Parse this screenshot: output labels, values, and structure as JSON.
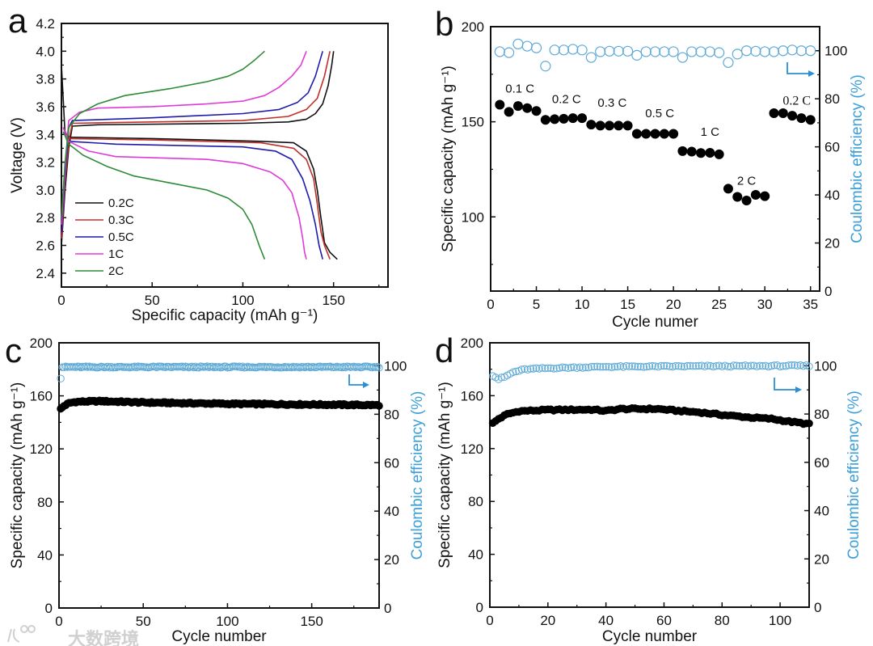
{
  "watermark": "大数跨境",
  "arrow_color": "#2b8fd6",
  "chart_data": [
    {
      "panel": "a",
      "type": "line",
      "xlabel": "Specific capacity (mAh g⁻¹)",
      "ylabel": "Voltage (V)",
      "xlim": [
        0,
        180
      ],
      "ylim": [
        2.3,
        4.2
      ],
      "xticks": [
        "0",
        "50",
        "100",
        "150"
      ],
      "xtick_values": [
        0,
        50,
        100,
        150
      ],
      "yticks": [
        "2.4",
        "2.6",
        "2.8",
        "3.0",
        "3.2",
        "3.4",
        "3.6",
        "3.8",
        "4.0",
        "4.2"
      ],
      "ytick_values": [
        2.4,
        2.6,
        2.8,
        3.0,
        3.2,
        3.4,
        3.6,
        3.8,
        4.0,
        4.2
      ],
      "legend_position": "bottom-left",
      "series": [
        {
          "name": "0.2C",
          "color": "#111111",
          "charge": [
            [
              0,
              2.6
            ],
            [
              2,
              3.0
            ],
            [
              4,
              3.3
            ],
            [
              6,
              3.46
            ],
            [
              20,
              3.47
            ],
            [
              100,
              3.48
            ],
            [
              125,
              3.49
            ],
            [
              135,
              3.51
            ],
            [
              140,
              3.55
            ],
            [
              144,
              3.62
            ],
            [
              147,
              3.75
            ],
            [
              149,
              3.9
            ],
            [
              150,
              4.0
            ]
          ],
          "discharge": [
            [
              0,
              3.9
            ],
            [
              2,
              3.4
            ],
            [
              5,
              3.38
            ],
            [
              50,
              3.37
            ],
            [
              110,
              3.35
            ],
            [
              128,
              3.34
            ],
            [
              135,
              3.28
            ],
            [
              139,
              3.15
            ],
            [
              141,
              3.0
            ],
            [
              143,
              2.8
            ],
            [
              145,
              2.62
            ],
            [
              148,
              2.55
            ],
            [
              152,
              2.5
            ]
          ]
        },
        {
          "name": "0.3C",
          "color": "#c0302a",
          "charge": [
            [
              0,
              2.65
            ],
            [
              2,
              3.05
            ],
            [
              4,
              3.35
            ],
            [
              6,
              3.48
            ],
            [
              50,
              3.49
            ],
            [
              100,
              3.5
            ],
            [
              125,
              3.53
            ],
            [
              135,
              3.58
            ],
            [
              141,
              3.66
            ],
            [
              145,
              3.82
            ],
            [
              148,
              4.0
            ]
          ],
          "discharge": [
            [
              1,
              3.45
            ],
            [
              4,
              3.37
            ],
            [
              50,
              3.36
            ],
            [
              110,
              3.34
            ],
            [
              128,
              3.3
            ],
            [
              135,
              3.22
            ],
            [
              139,
              3.08
            ],
            [
              141,
              2.9
            ],
            [
              143,
              2.7
            ],
            [
              145,
              2.6
            ],
            [
              148,
              2.5
            ]
          ]
        },
        {
          "name": "0.5C",
          "color": "#1c1caa",
          "charge": [
            [
              0,
              2.7
            ],
            [
              2,
              3.1
            ],
            [
              4,
              3.45
            ],
            [
              6,
              3.5
            ],
            [
              50,
              3.52
            ],
            [
              100,
              3.55
            ],
            [
              120,
              3.58
            ],
            [
              130,
              3.63
            ],
            [
              136,
              3.7
            ],
            [
              140,
              3.82
            ],
            [
              144,
              4.0
            ]
          ],
          "discharge": [
            [
              1,
              3.45
            ],
            [
              4,
              3.35
            ],
            [
              30,
              3.33
            ],
            [
              100,
              3.31
            ],
            [
              118,
              3.28
            ],
            [
              127,
              3.22
            ],
            [
              133,
              3.08
            ],
            [
              137,
              2.92
            ],
            [
              140,
              2.75
            ],
            [
              142,
              2.6
            ],
            [
              144,
              2.5
            ]
          ]
        },
        {
          "name": "1C",
          "color": "#e03ad8",
          "charge": [
            [
              0,
              2.75
            ],
            [
              2,
              3.15
            ],
            [
              4,
              3.5
            ],
            [
              10,
              3.56
            ],
            [
              20,
              3.59
            ],
            [
              50,
              3.6
            ],
            [
              80,
              3.62
            ],
            [
              100,
              3.64
            ],
            [
              112,
              3.68
            ],
            [
              120,
              3.74
            ],
            [
              127,
              3.82
            ],
            [
              132,
              3.9
            ],
            [
              135,
              4.0
            ]
          ],
          "discharge": [
            [
              1,
              3.45
            ],
            [
              4,
              3.35
            ],
            [
              15,
              3.28
            ],
            [
              30,
              3.24
            ],
            [
              80,
              3.22
            ],
            [
              100,
              3.19
            ],
            [
              115,
              3.13
            ],
            [
              122,
              3.07
            ],
            [
              127,
              2.98
            ],
            [
              131,
              2.8
            ],
            [
              133,
              2.65
            ],
            [
              134,
              2.55
            ],
            [
              135,
              2.5
            ]
          ]
        },
        {
          "name": "2C",
          "color": "#2e8b37",
          "charge": [
            [
              0,
              2.8
            ],
            [
              2,
              3.2
            ],
            [
              4,
              3.45
            ],
            [
              10,
              3.55
            ],
            [
              20,
              3.62
            ],
            [
              35,
              3.68
            ],
            [
              60,
              3.73
            ],
            [
              80,
              3.78
            ],
            [
              92,
              3.82
            ],
            [
              100,
              3.87
            ],
            [
              106,
              3.93
            ],
            [
              112,
              4.0
            ]
          ],
          "discharge": [
            [
              1,
              3.42
            ],
            [
              4,
              3.33
            ],
            [
              12,
              3.25
            ],
            [
              25,
              3.17
            ],
            [
              40,
              3.1
            ],
            [
              60,
              3.05
            ],
            [
              80,
              3.0
            ],
            [
              92,
              2.94
            ],
            [
              100,
              2.86
            ],
            [
              105,
              2.75
            ],
            [
              109,
              2.6
            ],
            [
              112,
              2.5
            ]
          ]
        }
      ]
    },
    {
      "panel": "b",
      "type": "scatter",
      "xlabel": "Cycle numer",
      "ylabel": "Specific capacity (mAh g⁻¹)",
      "ylabel_right": "Coulombic efficiency (%)",
      "xlim": [
        0,
        36
      ],
      "ylim": [
        61,
        200
      ],
      "ylim_right": [
        0,
        110
      ],
      "xticks": [
        "0",
        "5",
        "10",
        "15",
        "20",
        "25",
        "30",
        "35"
      ],
      "xtick_values": [
        0,
        5,
        10,
        15,
        20,
        25,
        30,
        35
      ],
      "yticks": [
        "100",
        "150",
        "200"
      ],
      "ytick_values": [
        100,
        150,
        200
      ],
      "yticks_right": [
        "0",
        "20",
        "40",
        "60",
        "80",
        "100"
      ],
      "ytick_values_right": [
        0,
        20,
        40,
        60,
        80,
        100
      ],
      "cycles": [
        1,
        2,
        3,
        4,
        5,
        6,
        7,
        8,
        9,
        10,
        11,
        12,
        13,
        14,
        15,
        16,
        17,
        18,
        19,
        20,
        21,
        22,
        23,
        24,
        25,
        26,
        27,
        28,
        29,
        30,
        31,
        32,
        33,
        34,
        35
      ],
      "capacity": [
        159,
        155.2,
        158.3,
        157.2,
        155.7,
        151,
        151.4,
        151.6,
        151.9,
        151.9,
        148.5,
        148,
        148,
        148,
        148,
        143.7,
        143.7,
        143.7,
        143.7,
        143.7,
        134.6,
        134.3,
        133.6,
        133.7,
        132.9,
        114.8,
        110.5,
        108.6,
        111.6,
        110.9,
        154.5,
        154.5,
        153.2,
        151.9,
        151
      ],
      "coulombic_efficiency": [
        99.6,
        99.2,
        102.8,
        101.9,
        101.2,
        93.6,
        100.3,
        100.3,
        100.6,
        100.3,
        97.2,
        99.6,
        99.8,
        99.8,
        99.8,
        98.1,
        99.6,
        99.6,
        99.6,
        99.6,
        97.2,
        99.6,
        99.6,
        99.6,
        99.2,
        95.1,
        98.6,
        100,
        99.8,
        99.6,
        99.6,
        100,
        100.3,
        100,
        100
      ],
      "annotations": [
        {
          "text": "0.1 C",
          "x": 3.2,
          "y": 167.5
        },
        {
          "text": "0.2 C",
          "x": 8.3,
          "y": 162
        },
        {
          "text": "0.3 C",
          "x": 13.3,
          "y": 160
        },
        {
          "text": "0.5 C",
          "x": 18.5,
          "y": 154.5
        },
        {
          "text": "1 C",
          "x": 24,
          "y": 144.7
        },
        {
          "text": "2 C",
          "x": 28,
          "y": 119
        },
        {
          "text": "0.2 C",
          "x": 33.5,
          "y": 161,
          "serif": true
        }
      ]
    },
    {
      "panel": "c",
      "type": "scatter",
      "xlabel": "Cycle number",
      "ylabel": "Specific capacity (mAh g⁻¹)",
      "ylabel_right": "Coulombic efficiency (%)",
      "xlim": [
        0,
        190
      ],
      "ylim": [
        0,
        200
      ],
      "ylim_right": [
        0,
        109.5
      ],
      "xticks": [
        "0",
        "50",
        "100",
        "150"
      ],
      "xtick_values": [
        0,
        50,
        100,
        150
      ],
      "yticks": [
        "0",
        "40",
        "80",
        "120",
        "160",
        "200"
      ],
      "ytick_values": [
        0,
        40,
        80,
        120,
        160,
        200
      ],
      "yticks_right": [
        "0",
        "20",
        "40",
        "60",
        "80",
        "100"
      ],
      "ytick_values_right": [
        0,
        20,
        40,
        60,
        80,
        100
      ],
      "cycle_range": [
        1,
        190
      ],
      "capacity_keypoints": [
        [
          1,
          150
        ],
        [
          3,
          152.5
        ],
        [
          6,
          154.5
        ],
        [
          10,
          155.5
        ],
        [
          25,
          156
        ],
        [
          50,
          155
        ],
        [
          100,
          154
        ],
        [
          150,
          153.5
        ],
        [
          190,
          153
        ]
      ],
      "ce_keypoints": [
        [
          1,
          95
        ],
        [
          2,
          99.5
        ],
        [
          190,
          99.5
        ]
      ]
    },
    {
      "panel": "d",
      "type": "scatter",
      "xlabel": "Cycle number",
      "ylabel": "Specific capacity (mAh g⁻¹)",
      "ylabel_right": "Coulombic efficiency (%)",
      "xlim": [
        0,
        110
      ],
      "ylim": [
        0,
        200
      ],
      "ylim_right": [
        0,
        109.5
      ],
      "xticks": [
        "0",
        "20",
        "40",
        "60",
        "80",
        "100"
      ],
      "xtick_values": [
        0,
        20,
        40,
        60,
        80,
        100
      ],
      "yticks": [
        "0",
        "40",
        "80",
        "120",
        "160",
        "200"
      ],
      "ytick_values": [
        0,
        40,
        80,
        120,
        160,
        200
      ],
      "yticks_right": [
        "0",
        "20",
        "40",
        "60",
        "80",
        "100"
      ],
      "ytick_values_right": [
        0,
        20,
        40,
        60,
        80,
        100
      ],
      "cycle_range": [
        1,
        110
      ],
      "capacity_keypoints": [
        [
          1,
          139
        ],
        [
          3,
          142.5
        ],
        [
          6,
          146
        ],
        [
          10,
          148.3
        ],
        [
          20,
          149.2
        ],
        [
          35,
          149.5
        ],
        [
          40,
          148.5
        ],
        [
          45,
          150
        ],
        [
          58,
          150
        ],
        [
          65,
          148.5
        ],
        [
          72,
          147.5
        ],
        [
          80,
          145.5
        ],
        [
          90,
          143.5
        ],
        [
          97,
          142.5
        ],
        [
          103,
          140.5
        ],
        [
          110,
          138.5
        ]
      ],
      "ce_keypoints": [
        [
          1,
          96
        ],
        [
          3,
          94.5
        ],
        [
          5,
          95.3
        ],
        [
          8,
          97.3
        ],
        [
          12,
          98.5
        ],
        [
          20,
          99
        ],
        [
          40,
          99.6
        ],
        [
          70,
          99.8
        ],
        [
          110,
          100
        ]
      ]
    }
  ]
}
